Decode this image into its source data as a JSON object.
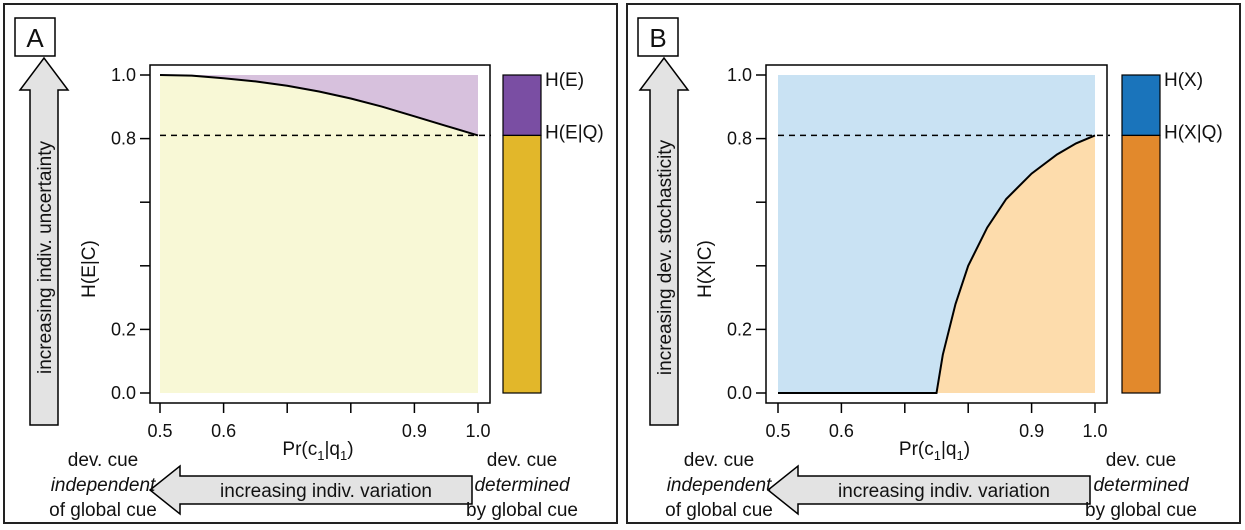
{
  "colors": {
    "panel_a_fill_lower": "#f8f8d6",
    "panel_a_fill_upper": "#d7c1dd",
    "panel_a_bar_top": "#7a4ea3",
    "panel_a_bar_bottom": "#e2b72a",
    "panel_b_fill_lower": "#fddcac",
    "panel_b_fill_upper": "#c9e2f3",
    "panel_b_bar_top": "#1a74bb",
    "panel_b_bar_bottom": "#e2892c",
    "arrow_fill": "#e3e3e3"
  },
  "bottom_notes": {
    "left_line1": "dev. cue",
    "left_line2": "independent",
    "left_line3": "of global cue",
    "right_line1": "dev. cue",
    "right_line2": "determined",
    "right_line3": "by global cue",
    "arrow_label": "increasing indiv. variation"
  },
  "chart_data": [
    {
      "panel": "A",
      "type": "area",
      "xlabel": "Pr(c1|q1)",
      "ylabel": "H(E|C)",
      "side_arrow_label": "increasing indiv. uncertainty",
      "xlim": [
        0.5,
        1.0
      ],
      "ylim": [
        0.0,
        1.0
      ],
      "x_ticks": [
        0.5,
        0.6,
        0.7,
        0.8,
        0.9,
        1.0
      ],
      "x_tick_labels": [
        "0.5",
        "0.6",
        "",
        "",
        "0.9",
        "1.0"
      ],
      "y_ticks": [
        0.0,
        0.2,
        0.4,
        0.6,
        0.8,
        1.0
      ],
      "y_tick_labels": [
        "0.0",
        "0.2",
        "",
        "",
        "0.8",
        "1.0"
      ],
      "dashed_line_y": 0.81,
      "curve": {
        "x": [
          0.5,
          0.55,
          0.6,
          0.65,
          0.7,
          0.75,
          0.8,
          0.85,
          0.9,
          0.95,
          1.0
        ],
        "y": [
          1.0,
          0.998,
          0.99,
          0.98,
          0.966,
          0.948,
          0.926,
          0.9,
          0.87,
          0.84,
          0.81
        ]
      },
      "legend_bar": [
        {
          "label": "H(E)",
          "from": 0.81,
          "to": 1.0
        },
        {
          "label": "H(E|Q)",
          "from": 0.0,
          "to": 0.81
        }
      ]
    },
    {
      "panel": "B",
      "type": "area",
      "xlabel": "Pr(c1|q1)",
      "ylabel": "H(X|C)",
      "side_arrow_label": "increasing dev. stochasticity",
      "xlim": [
        0.5,
        1.0
      ],
      "ylim": [
        0.0,
        1.0
      ],
      "x_ticks": [
        0.5,
        0.6,
        0.7,
        0.8,
        0.9,
        1.0
      ],
      "x_tick_labels": [
        "0.5",
        "0.6",
        "",
        "",
        "0.9",
        "1.0"
      ],
      "y_ticks": [
        0.0,
        0.2,
        0.4,
        0.6,
        0.8,
        1.0
      ],
      "y_tick_labels": [
        "0.0",
        "0.2",
        "",
        "",
        "0.8",
        "1.0"
      ],
      "dashed_line_y": 0.81,
      "curve": {
        "x": [
          0.5,
          0.75,
          0.76,
          0.78,
          0.8,
          0.83,
          0.86,
          0.9,
          0.94,
          0.97,
          1.0
        ],
        "y": [
          0.0,
          0.0,
          0.12,
          0.28,
          0.4,
          0.52,
          0.61,
          0.69,
          0.75,
          0.785,
          0.81
        ]
      },
      "legend_bar": [
        {
          "label": "H(X)",
          "from": 0.81,
          "to": 1.0
        },
        {
          "label": "H(X|Q)",
          "from": 0.0,
          "to": 0.81
        }
      ]
    }
  ]
}
